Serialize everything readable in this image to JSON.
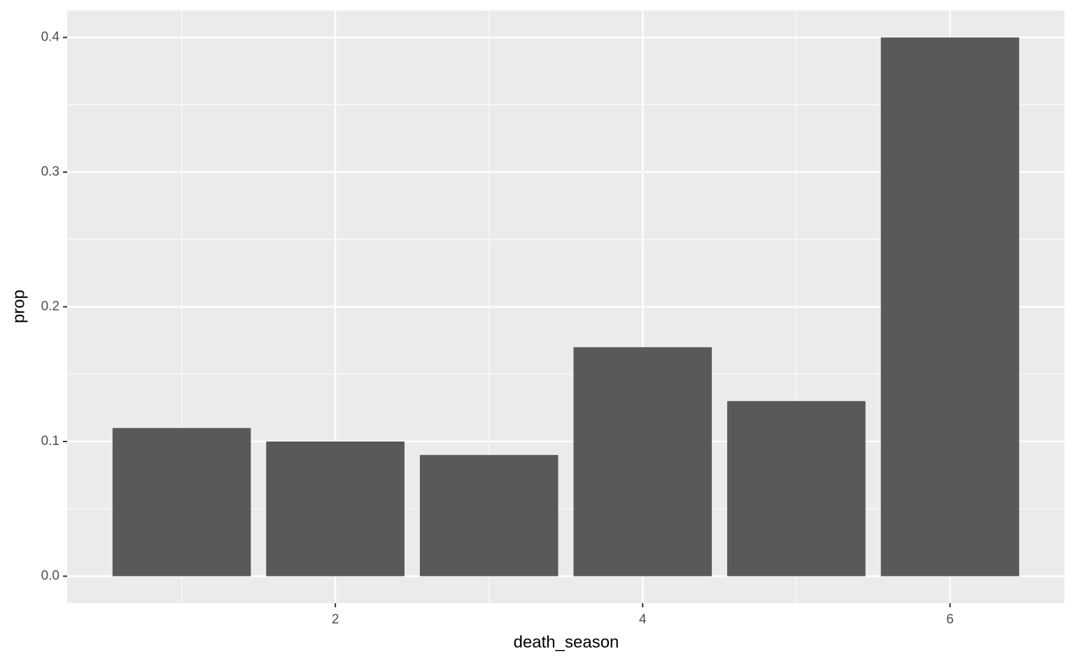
{
  "chart_data": {
    "type": "bar",
    "x": [
      1,
      2,
      3,
      4,
      5,
      6
    ],
    "values": [
      0.11,
      0.1,
      0.09,
      0.17,
      0.13,
      0.4
    ],
    "color": "#595959",
    "xlabel": "death_season",
    "ylabel": "prop",
    "xlim": [
      0.255,
      6.745
    ],
    "xticks": [
      2,
      4,
      6
    ],
    "ylim": [
      -0.02,
      0.42
    ],
    "yticks": [
      {
        "value": 0,
        "label": "0.0"
      },
      0.1,
      0.2,
      0.3,
      0.4
    ],
    "grid": true
  }
}
